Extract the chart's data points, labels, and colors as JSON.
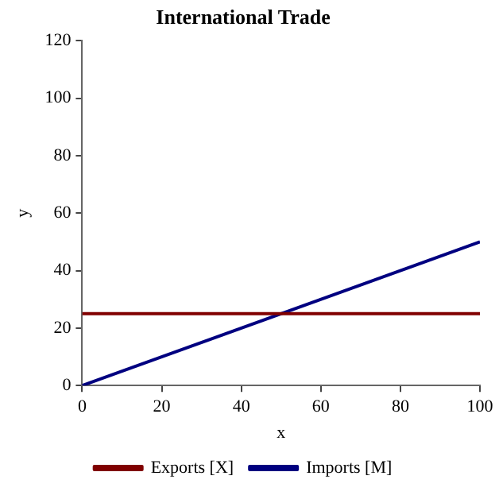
{
  "chart_data": {
    "type": "line",
    "title": "International Trade",
    "xlabel": "x",
    "ylabel": "y",
    "x": [
      0,
      100
    ],
    "series": [
      {
        "name": "Exports [X]",
        "color": "#800000",
        "values": [
          25,
          25
        ]
      },
      {
        "name": "Imports [M]",
        "color": "#000080",
        "values": [
          0,
          50
        ]
      }
    ],
    "xlim": [
      0,
      100
    ],
    "xticks": [
      0,
      20,
      40,
      60,
      80,
      100
    ],
    "ylim": [
      0,
      120
    ],
    "yticks": [
      0,
      20,
      40,
      60,
      80,
      100,
      120
    ],
    "grid": false,
    "legend": "bottom",
    "marker": "none",
    "line_style": "solid"
  }
}
